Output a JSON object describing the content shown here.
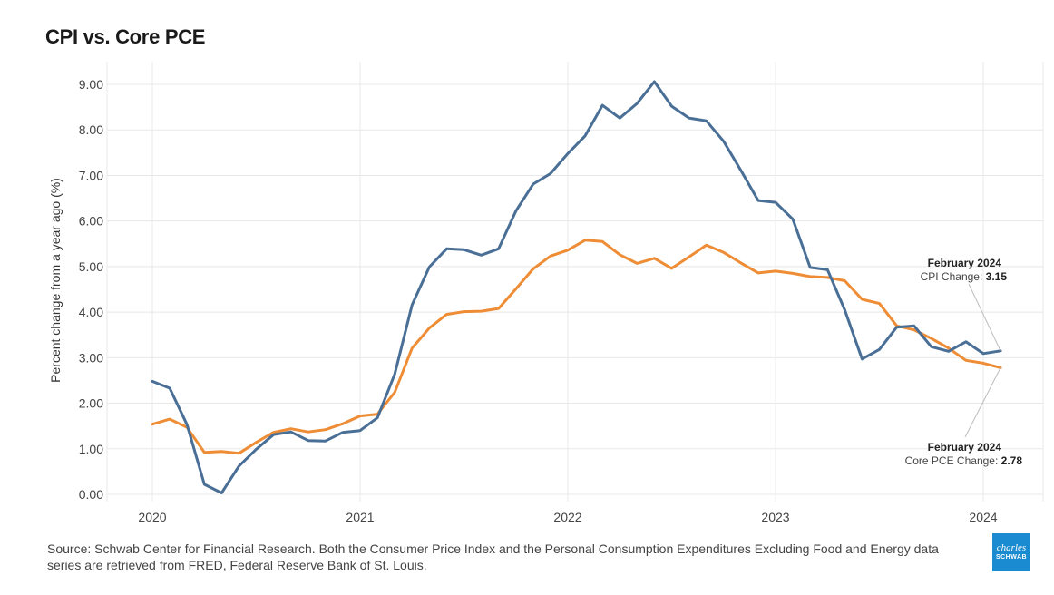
{
  "title": "CPI vs. Core PCE",
  "source": "Source:  Schwab Center for Financial Research.  Both the Consumer Price Index and the Personal Consumption Expenditures Excluding Food and Energy data series are retrieved from FRED, Federal Reserve Bank of St. Louis.",
  "logo": {
    "line1": "charles",
    "line2": "SCHWAB"
  },
  "annotations": {
    "cpi": {
      "title": "February 2024",
      "label": "CPI Change: ",
      "value": "3.15"
    },
    "pce": {
      "title": "February 2024",
      "label": "Core PCE Change: ",
      "value": "2.78"
    }
  },
  "chart_data": {
    "type": "line",
    "title": "CPI vs. Core PCE",
    "xlabel": "",
    "ylabel": "Percent change from a year ago (%)",
    "ylim": [
      0,
      9
    ],
    "xlim": [
      2019.85,
      2024.3
    ],
    "grid": true,
    "y_ticks": [
      "0.00",
      "1.00",
      "2.00",
      "3.00",
      "4.00",
      "5.00",
      "6.00",
      "7.00",
      "8.00",
      "9.00"
    ],
    "x_ticks": [
      "2020",
      "2021",
      "2022",
      "2023",
      "2024"
    ],
    "x_start": 2020,
    "x_step_months": 1,
    "colors": {
      "cpi": "#4a6f96",
      "pce": "#ee8d35",
      "grid": "#e8e8e8"
    },
    "series": [
      {
        "name": "CPI",
        "key": "cpi",
        "values": [
          2.48,
          2.33,
          1.53,
          0.22,
          0.03,
          0.62,
          0.99,
          1.31,
          1.37,
          1.18,
          1.17,
          1.36,
          1.4,
          1.68,
          2.64,
          4.16,
          4.99,
          5.39,
          5.37,
          5.25,
          5.39,
          6.22,
          6.81,
          7.04,
          7.48,
          7.87,
          8.54,
          8.26,
          8.58,
          9.06,
          8.52,
          8.26,
          8.2,
          7.75,
          7.11,
          6.45,
          6.41,
          6.04,
          4.98,
          4.93,
          4.05,
          2.97,
          3.18,
          3.67,
          3.7,
          3.24,
          3.14,
          3.35,
          3.09,
          3.15
        ]
      },
      {
        "name": "Core PCE",
        "key": "pce",
        "values": [
          1.54,
          1.65,
          1.47,
          0.92,
          0.94,
          0.9,
          1.14,
          1.36,
          1.44,
          1.37,
          1.42,
          1.55,
          1.72,
          1.76,
          2.24,
          3.21,
          3.65,
          3.95,
          4.01,
          4.02,
          4.08,
          4.51,
          4.95,
          5.23,
          5.36,
          5.58,
          5.55,
          5.26,
          5.07,
          5.18,
          4.96,
          5.21,
          5.47,
          5.31,
          5.08,
          4.86,
          4.9,
          4.85,
          4.78,
          4.76,
          4.69,
          4.28,
          4.19,
          3.7,
          3.61,
          3.42,
          3.21,
          2.94,
          2.88,
          2.78
        ]
      }
    ]
  }
}
